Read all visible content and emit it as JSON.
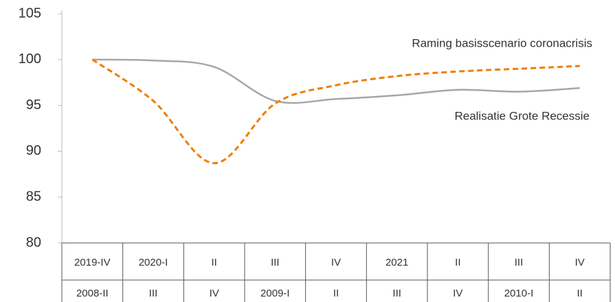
{
  "chart_data": {
    "type": "line",
    "categories": [
      "2019-IV",
      "2020-I",
      "II",
      "III",
      "IV",
      "2021",
      "II",
      "III",
      "IV"
    ],
    "categories2": [
      "2008-II",
      "III",
      "IV",
      "2009-I",
      "II",
      "III",
      "IV",
      "2010-I",
      "II"
    ],
    "series": [
      {
        "name": "Raming basisscenario coronacrisis",
        "color": "#f07c00",
        "dashed": true,
        "values": [
          100,
          95.5,
          88.7,
          95.2,
          97.2,
          98.2,
          98.7,
          99.0,
          99.3
        ]
      },
      {
        "name": "Realisatie Grote Recessie",
        "color": "#a6a6a6",
        "dashed": false,
        "values": [
          100,
          99.9,
          99.2,
          95.5,
          95.7,
          96.1,
          96.7,
          96.5,
          96.9
        ]
      }
    ],
    "ylim": [
      80,
      105
    ],
    "yticks": [
      80,
      85,
      90,
      95,
      100,
      105
    ],
    "grid": false
  }
}
